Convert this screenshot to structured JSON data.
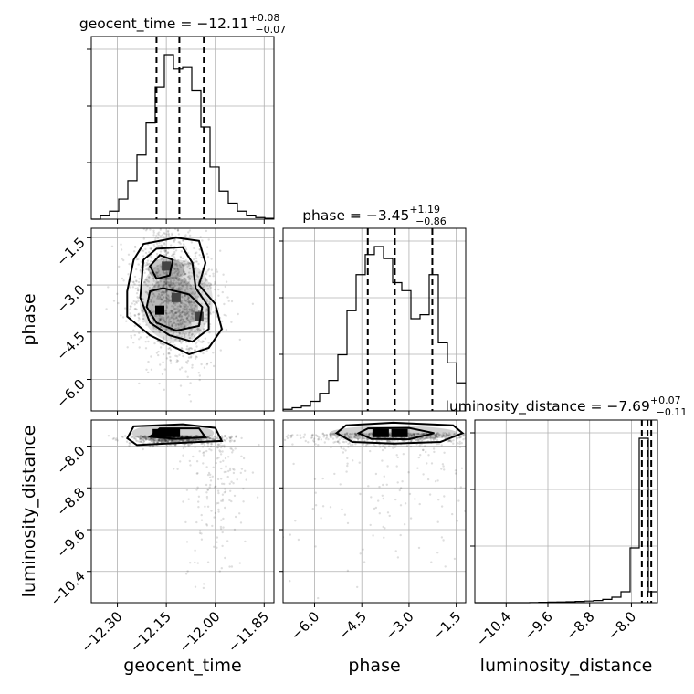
{
  "chart_data": {
    "type": "corner",
    "parameters": [
      "geocent_time",
      "phase",
      "luminosity_distance"
    ],
    "titles": [
      {
        "name": "geocent_time",
        "value": "−12.11",
        "plus": "+0.08",
        "minus": "−0.07"
      },
      {
        "name": "phase",
        "value": "−3.45",
        "plus": "+1.19",
        "minus": "−0.86"
      },
      {
        "name": "luminosity_distance",
        "value": "−7.69",
        "plus": "+0.07",
        "minus": "−0.11"
      }
    ],
    "axes": {
      "geocent_time": {
        "range": [
          -12.38,
          -11.82
        ],
        "ticks": [
          -12.3,
          -12.15,
          -12.0,
          -11.85
        ],
        "tick_labels": [
          "−12.30",
          "−12.15",
          "−12.00",
          "−11.85"
        ],
        "label": "geocent_time"
      },
      "phase": {
        "range": [
          -7.0,
          -1.2
        ],
        "ticks": [
          -6.0,
          -4.5,
          -3.0,
          -1.5
        ],
        "tick_labels": [
          "−6.0",
          "−4.5",
          "−3.0",
          "−1.5"
        ],
        "label": "phase"
      },
      "luminosity_distance": {
        "range": [
          -11.0,
          -7.5
        ],
        "ticks": [
          -10.4,
          -9.6,
          -8.8,
          -8.0
        ],
        "tick_labels": [
          "−10.4",
          "−9.6",
          "−8.8",
          "−8.0"
        ],
        "label": "luminosity_distance"
      }
    },
    "quantiles": {
      "geocent_time": [
        -12.18,
        -12.11,
        -12.035
      ],
      "phase": [
        -4.31,
        -3.45,
        -2.26
      ],
      "luminosity_distance": [
        -7.8,
        -7.69,
        -7.62
      ]
    },
    "histograms": {
      "geocent_time": {
        "edges": [
          -12.38,
          -12.352,
          -12.324,
          -12.296,
          -12.268,
          -12.24,
          -12.212,
          -12.184,
          -12.156,
          -12.128,
          -12.1,
          -12.072,
          -12.044,
          -12.016,
          -11.988,
          -11.96,
          -11.932,
          -11.904,
          -11.876,
          -11.848,
          -11.82
        ],
        "counts": [
          0,
          5,
          10,
          25,
          48,
          80,
          120,
          165,
          205,
          187,
          190,
          160,
          115,
          65,
          35,
          20,
          10,
          5,
          2,
          1
        ]
      },
      "phase": {
        "edges": [
          -7.0,
          -6.71,
          -6.42,
          -6.13,
          -5.84,
          -5.55,
          -5.26,
          -4.97,
          -4.68,
          -4.39,
          -4.1,
          -3.81,
          -3.52,
          -3.23,
          -2.94,
          -2.65,
          -2.36,
          -2.07,
          -1.78,
          -1.49,
          -1.2
        ],
        "counts": [
          2,
          4,
          6,
          12,
          22,
          38,
          70,
          125,
          170,
          195,
          205,
          190,
          160,
          150,
          115,
          120,
          170,
          85,
          60,
          35
        ]
      },
      "luminosity_distance": {
        "edges": [
          -11.0,
          -10.825,
          -10.65,
          -10.475,
          -10.3,
          -10.125,
          -9.95,
          -9.775,
          -9.6,
          -9.425,
          -9.25,
          -9.075,
          -8.9,
          -8.725,
          -8.55,
          -8.375,
          -8.2,
          -8.025,
          -7.85,
          -7.675,
          -7.5
        ],
        "counts": [
          0,
          0,
          0,
          0,
          0,
          0,
          1,
          2,
          3,
          4,
          5,
          7,
          9,
          12,
          18,
          30,
          60,
          300,
          900,
          60
        ]
      }
    },
    "density_peaks": {
      "phase_vs_geocent_time": [
        [
          -12.17,
          -3.8
        ],
        [
          -12.15,
          -2.4
        ],
        [
          -12.05,
          -4.0
        ],
        [
          -12.12,
          -3.4
        ]
      ],
      "lumdist_vs_geocent_time": [
        [
          -12.15,
          -7.75
        ]
      ],
      "lumdist_vs_phase": [
        [
          -3.9,
          -7.75
        ],
        [
          -3.3,
          -7.75
        ]
      ]
    },
    "grid": true
  }
}
